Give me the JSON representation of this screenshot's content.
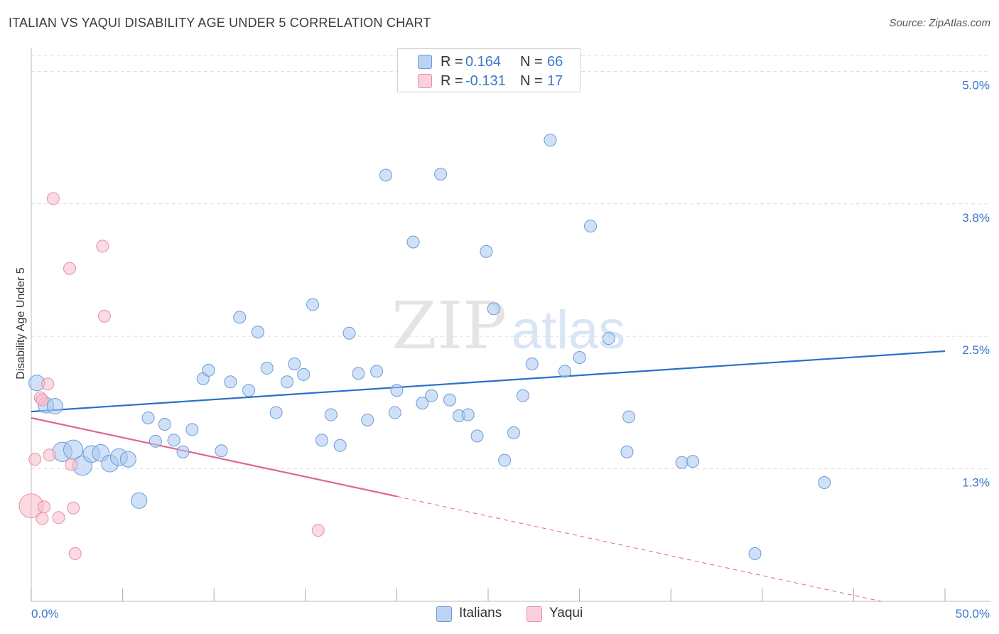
{
  "title": "ITALIAN VS YAQUI DISABILITY AGE UNDER 5 CORRELATION CHART",
  "source": "Source: ZipAtlas.com",
  "watermark": {
    "zip": "ZIP",
    "atlas": "atlas"
  },
  "colors": {
    "italians_fill": "#a9c8f0",
    "italians_stroke": "#6a9bd8",
    "italians_line": "#2a6fc9",
    "yaqui_fill": "#f7bccb",
    "yaqui_stroke": "#e58fa8",
    "yaqui_line": "#e06690",
    "grid": "#dcdcdc",
    "axis_label": "#3a78c8"
  },
  "legend_top": [
    {
      "r_label": "R =",
      "r_value": "0.164",
      "n_label": "N =",
      "n_value": "66"
    },
    {
      "r_label": "R =",
      "r_value": "-0.131",
      "n_label": "N =",
      "n_value": "17"
    }
  ],
  "legend_bottom": [
    "Italians",
    "Yaqui"
  ],
  "chart_data": {
    "type": "scatter",
    "title": "ITALIAN VS YAQUI DISABILITY AGE UNDER 5 CORRELATION CHART",
    "xlabel": "",
    "ylabel": "Disability Age Under 5",
    "xlim": [
      0,
      50
    ],
    "ylim": [
      0,
      5.15
    ],
    "x_tick_labels": [
      "0.0%",
      "50.0%"
    ],
    "y_ticks": [
      1.25,
      2.5,
      3.75,
      5.0
    ],
    "y_tick_labels": [
      "1.3%",
      "2.5%",
      "3.8%",
      "5.0%"
    ],
    "grid": true,
    "series": [
      {
        "name": "Italians",
        "r": 0.164,
        "n": 66,
        "trend": {
          "x": [
            0,
            50
          ],
          "y": [
            1.79,
            2.36
          ]
        },
        "points": [
          {
            "x": 0.3,
            "y": 2.06,
            "s": 1.3
          },
          {
            "x": 0.8,
            "y": 1.85,
            "s": 1.3
          },
          {
            "x": 1.3,
            "y": 1.84,
            "s": 1.3
          },
          {
            "x": 1.7,
            "y": 1.41,
            "s": 1.6
          },
          {
            "x": 2.3,
            "y": 1.43,
            "s": 1.6
          },
          {
            "x": 2.8,
            "y": 1.28,
            "s": 1.6
          },
          {
            "x": 3.3,
            "y": 1.39,
            "s": 1.4
          },
          {
            "x": 3.8,
            "y": 1.4,
            "s": 1.4
          },
          {
            "x": 4.3,
            "y": 1.3,
            "s": 1.4
          },
          {
            "x": 4.8,
            "y": 1.36,
            "s": 1.4
          },
          {
            "x": 5.3,
            "y": 1.34,
            "s": 1.3
          },
          {
            "x": 5.9,
            "y": 0.95,
            "s": 1.3
          },
          {
            "x": 6.4,
            "y": 1.73
          },
          {
            "x": 6.8,
            "y": 1.51
          },
          {
            "x": 7.3,
            "y": 1.67
          },
          {
            "x": 7.8,
            "y": 1.52
          },
          {
            "x": 8.3,
            "y": 1.41
          },
          {
            "x": 8.8,
            "y": 1.62
          },
          {
            "x": 9.4,
            "y": 2.1
          },
          {
            "x": 9.7,
            "y": 2.18
          },
          {
            "x": 10.4,
            "y": 1.42
          },
          {
            "x": 10.9,
            "y": 2.07
          },
          {
            "x": 11.4,
            "y": 2.68
          },
          {
            "x": 11.9,
            "y": 1.99
          },
          {
            "x": 12.4,
            "y": 2.54
          },
          {
            "x": 12.9,
            "y": 2.2
          },
          {
            "x": 13.4,
            "y": 1.78
          },
          {
            "x": 14.0,
            "y": 2.07
          },
          {
            "x": 14.4,
            "y": 2.24
          },
          {
            "x": 14.9,
            "y": 2.14
          },
          {
            "x": 15.4,
            "y": 2.8
          },
          {
            "x": 15.9,
            "y": 1.52
          },
          {
            "x": 16.4,
            "y": 1.76
          },
          {
            "x": 16.9,
            "y": 1.47
          },
          {
            "x": 17.4,
            "y": 2.53
          },
          {
            "x": 17.9,
            "y": 2.15
          },
          {
            "x": 18.4,
            "y": 1.71
          },
          {
            "x": 18.9,
            "y": 2.17
          },
          {
            "x": 19.4,
            "y": 4.02
          },
          {
            "x": 19.9,
            "y": 1.78
          },
          {
            "x": 20.0,
            "y": 1.99
          },
          {
            "x": 20.9,
            "y": 3.39
          },
          {
            "x": 21.4,
            "y": 1.87
          },
          {
            "x": 21.9,
            "y": 1.94
          },
          {
            "x": 22.4,
            "y": 4.03
          },
          {
            "x": 22.9,
            "y": 1.9
          },
          {
            "x": 23.4,
            "y": 1.75
          },
          {
            "x": 23.9,
            "y": 1.76
          },
          {
            "x": 24.4,
            "y": 1.56
          },
          {
            "x": 24.9,
            "y": 3.3
          },
          {
            "x": 25.3,
            "y": 2.76
          },
          {
            "x": 25.9,
            "y": 1.33
          },
          {
            "x": 26.4,
            "y": 1.59
          },
          {
            "x": 26.9,
            "y": 1.94
          },
          {
            "x": 27.4,
            "y": 2.24
          },
          {
            "x": 28.4,
            "y": 4.35
          },
          {
            "x": 29.2,
            "y": 2.17
          },
          {
            "x": 30.0,
            "y": 2.3
          },
          {
            "x": 30.6,
            "y": 3.54
          },
          {
            "x": 31.6,
            "y": 2.48
          },
          {
            "x": 32.7,
            "y": 1.74
          },
          {
            "x": 32.6,
            "y": 1.41
          },
          {
            "x": 35.6,
            "y": 1.31
          },
          {
            "x": 36.2,
            "y": 1.32
          },
          {
            "x": 43.4,
            "y": 1.12
          },
          {
            "x": 39.6,
            "y": 0.45
          }
        ]
      },
      {
        "name": "Yaqui",
        "r": -0.131,
        "n": 17,
        "trend": {
          "x": [
            0,
            20
          ],
          "y": [
            1.73,
            0.99
          ]
        },
        "trend_dashed": {
          "x": [
            20,
            46.5
          ],
          "y": [
            0.99,
            0.0
          ]
        },
        "points": [
          {
            "x": 0.0,
            "y": 0.9,
            "s": 2.0
          },
          {
            "x": 0.2,
            "y": 1.34
          },
          {
            "x": 0.5,
            "y": 1.92
          },
          {
            "x": 0.6,
            "y": 0.78
          },
          {
            "x": 0.7,
            "y": 0.89
          },
          {
            "x": 0.9,
            "y": 2.05
          },
          {
            "x": 1.0,
            "y": 1.38
          },
          {
            "x": 1.2,
            "y": 3.8
          },
          {
            "x": 1.5,
            "y": 0.79
          },
          {
            "x": 2.1,
            "y": 3.14
          },
          {
            "x": 2.2,
            "y": 1.29
          },
          {
            "x": 2.3,
            "y": 0.88
          },
          {
            "x": 2.4,
            "y": 0.45
          },
          {
            "x": 3.9,
            "y": 3.35
          },
          {
            "x": 4.0,
            "y": 2.69
          },
          {
            "x": 15.7,
            "y": 0.67
          },
          {
            "x": 0.6,
            "y": 1.9
          }
        ]
      }
    ]
  }
}
